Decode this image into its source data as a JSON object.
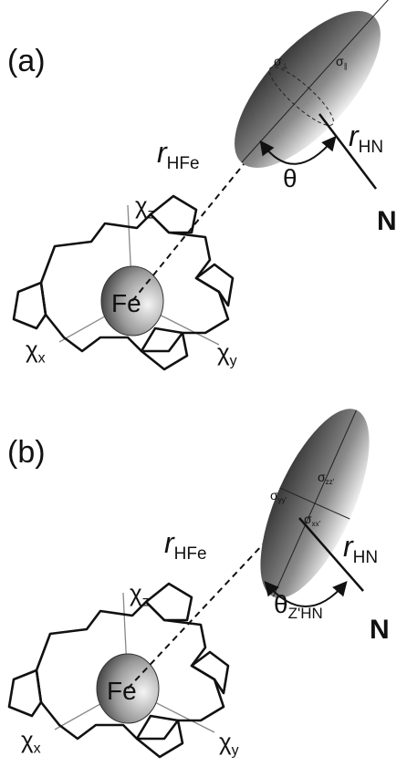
{
  "panels": [
    {
      "label": "(a)",
      "labels": [
        {
          "text": "σ",
          "sub": "⊥"
        },
        {
          "text": "σ",
          "sub": "∥"
        },
        {
          "text": "r",
          "sub": "HFe"
        },
        {
          "text": "θ"
        },
        {
          "text": "r",
          "sub": "HN"
        },
        {
          "text": "N"
        },
        {
          "text": "χ",
          "sub": "z"
        },
        {
          "text": "Fe"
        },
        {
          "text": "χ",
          "sub": "x"
        },
        {
          "text": "χ",
          "sub": "y"
        }
      ]
    },
    {
      "label": "(b)",
      "labels": [
        {
          "text": "σ",
          "sub": "yy'"
        },
        {
          "text": "σ",
          "sub": "zz'"
        },
        {
          "text": "σ",
          "sub": "xx'"
        },
        {
          "text": "r",
          "sub": "HFe"
        },
        {
          "text": "θ",
          "sub": "Z'HN"
        },
        {
          "text": "r",
          "sub": "HN"
        },
        {
          "text": "N"
        },
        {
          "text": "χ",
          "sub": "z"
        },
        {
          "text": "Fe"
        },
        {
          "text": "χ",
          "sub": "x"
        },
        {
          "text": "χ",
          "sub": "y"
        }
      ]
    }
  ]
}
